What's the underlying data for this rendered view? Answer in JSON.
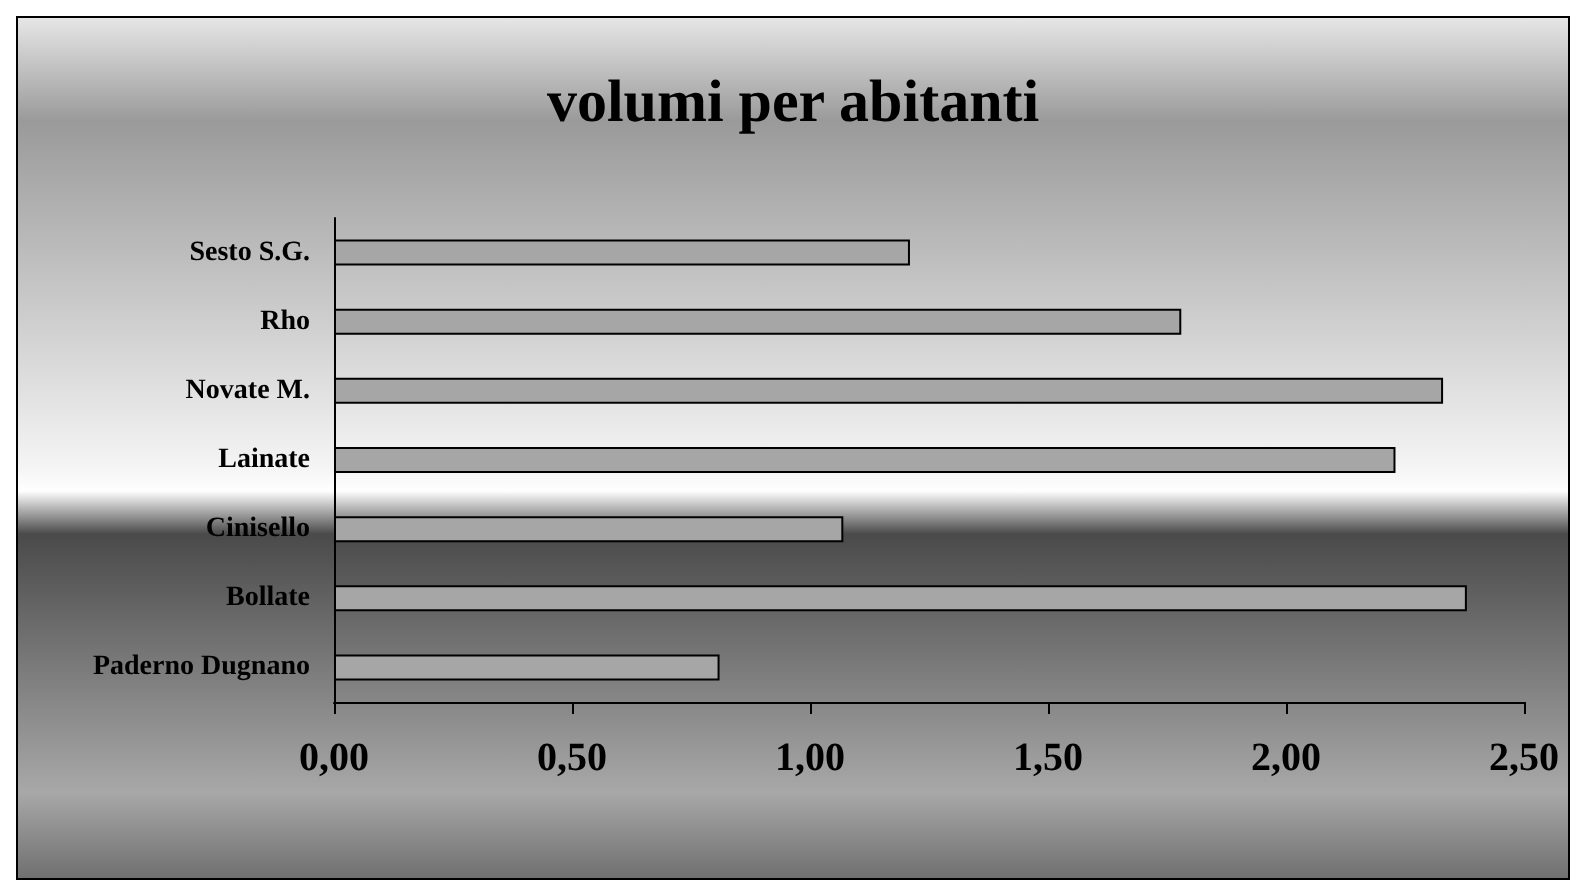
{
  "chart_data": {
    "type": "bar",
    "orientation": "horizontal",
    "title": "volumi per abitanti",
    "categories": [
      "Sesto S.G.",
      "Rho",
      "Novate M.",
      "Lainate",
      "Cinisello",
      "Bollate",
      "Paderno Dugnano"
    ],
    "values": [
      1.21,
      1.78,
      2.33,
      2.23,
      1.07,
      2.38,
      0.81
    ],
    "color": "#a6a6a6",
    "xlim": [
      0,
      2.5
    ],
    "xticks": [
      {
        "value": 0,
        "label": "0,00"
      },
      {
        "value": 0.5,
        "label": "0,50"
      },
      {
        "value": 1,
        "label": "1,00"
      },
      {
        "value": 1.5,
        "label": "1,50"
      },
      {
        "value": 2,
        "label": "2,00"
      },
      {
        "value": 2.5,
        "label": "2,50"
      }
    ],
    "grid": false
  }
}
